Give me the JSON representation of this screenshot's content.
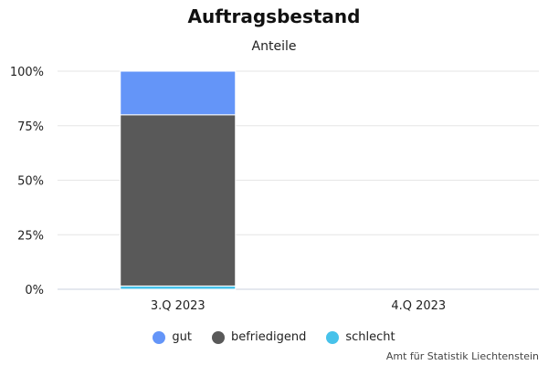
{
  "chart_data": {
    "type": "bar",
    "stacked": true,
    "title": "Auftragsbestand",
    "subtitle": "Anteile",
    "categories": [
      "3.Q 2023",
      "4.Q 2023"
    ],
    "series": [
      {
        "name": "gut",
        "color": "#6495f8",
        "values": [
          20,
          null
        ]
      },
      {
        "name": "befriedigend",
        "color": "#595959",
        "values": [
          78.5,
          null
        ]
      },
      {
        "name": "schlecht",
        "color": "#47c2ea",
        "values": [
          1.5,
          null
        ]
      }
    ],
    "ylim": [
      0,
      100
    ],
    "yticks": [
      "0%",
      "25%",
      "50%",
      "75%",
      "100%"
    ],
    "grid": true,
    "legend_position": "bottom"
  },
  "credit": "Amt für Statistik Liechtenstein"
}
